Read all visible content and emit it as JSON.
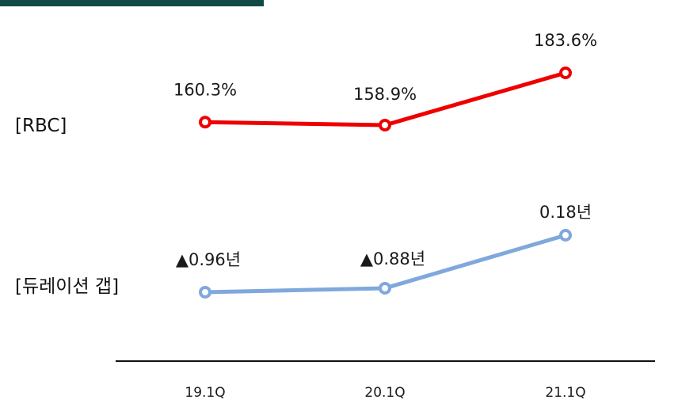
{
  "chart_data": {
    "type": "line",
    "categories": [
      "19.1Q",
      "20.1Q",
      "21.1Q"
    ],
    "series": [
      {
        "name": "[RBC]",
        "values": [
          160.3,
          158.9,
          183.6
        ],
        "labels": [
          "160.3%",
          "158.9%",
          "183.6%"
        ],
        "color": "#ee0000"
      },
      {
        "name": "[듀레이션 갭]",
        "values": [
          -0.96,
          -0.88,
          0.18
        ],
        "labels": [
          "▲0.96년",
          "▲0.88년",
          "0.18년"
        ],
        "color": "#7fa8dc"
      }
    ],
    "xlabel": "",
    "ylabel": "",
    "grid": false,
    "legend": "left"
  },
  "colors": {
    "top_bar": "#0f4a46",
    "axis": "#111111"
  }
}
